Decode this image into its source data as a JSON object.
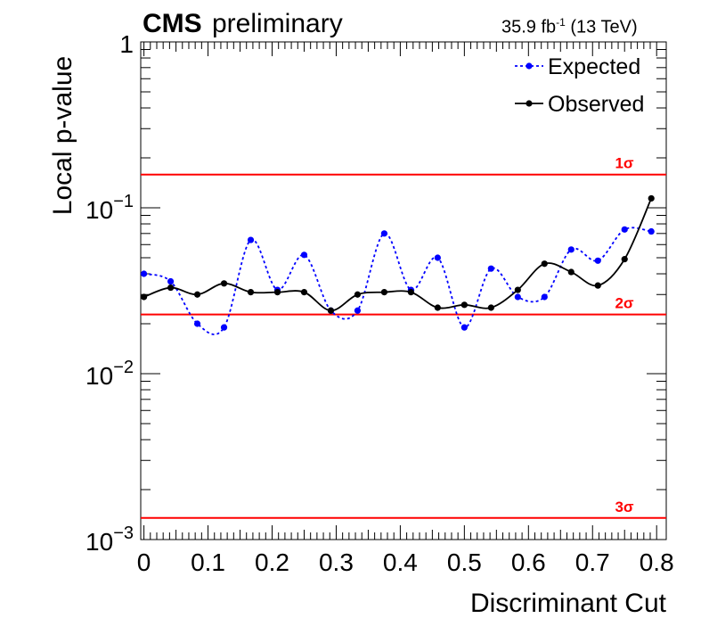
{
  "header": {
    "experiment": "CMS",
    "status": "preliminary",
    "lumi_prefix": "35.9 fb",
    "lumi_exp": "-1",
    "lumi_suffix": " (13 TeV)"
  },
  "chart_data": {
    "type": "line",
    "xlabel": "Discriminant Cut",
    "ylabel": "Local p-value",
    "xlim": [
      -0.005,
      0.815
    ],
    "ylim": [
      0.001,
      1
    ],
    "yscale": "log",
    "x_ticks": [
      "0",
      "0.1",
      "0.2",
      "0.3",
      "0.4",
      "0.5",
      "0.6",
      "0.7",
      "0.8"
    ],
    "y_ticks": [
      {
        "base": "10",
        "exp": "−3"
      },
      {
        "base": "10",
        "exp": "−2"
      },
      {
        "base": "10",
        "exp": "−1"
      },
      {
        "base": "1",
        "exp": ""
      }
    ],
    "legend": {
      "position": "top-right",
      "entries": [
        "Expected",
        "Observed"
      ]
    },
    "colors": {
      "expected": "#0000ff",
      "observed": "#000000",
      "sigma": "#ff0000"
    },
    "series": [
      {
        "name": "Expected",
        "style": "dotted",
        "x": [
          0.0,
          0.04167,
          0.08333,
          0.125,
          0.16667,
          0.20833,
          0.25,
          0.29167,
          0.33333,
          0.375,
          0.41667,
          0.45833,
          0.5,
          0.54167,
          0.58333,
          0.625,
          0.66667,
          0.70833,
          0.75,
          0.79167
        ],
        "y": [
          0.04,
          0.036,
          0.02,
          0.019,
          0.064,
          0.032,
          0.052,
          0.024,
          0.024,
          0.07,
          0.032,
          0.05,
          0.019,
          0.043,
          0.029,
          0.029,
          0.056,
          0.048,
          0.074,
          0.072
        ]
      },
      {
        "name": "Observed",
        "style": "solid",
        "x": [
          0.0,
          0.04167,
          0.08333,
          0.125,
          0.16667,
          0.20833,
          0.25,
          0.29167,
          0.33333,
          0.375,
          0.41667,
          0.45833,
          0.5,
          0.54167,
          0.58333,
          0.625,
          0.66667,
          0.70833,
          0.75,
          0.79167
        ],
        "y": [
          0.029,
          0.033,
          0.03,
          0.035,
          0.031,
          0.031,
          0.031,
          0.024,
          0.03,
          0.031,
          0.031,
          0.025,
          0.026,
          0.025,
          0.032,
          0.046,
          0.041,
          0.034,
          0.049,
          0.114
        ]
      }
    ],
    "sigma_lines": [
      {
        "label": "1σ",
        "p": 0.1587
      },
      {
        "label": "2σ",
        "p": 0.02275
      },
      {
        "label": "3σ",
        "p": 0.00135
      }
    ]
  }
}
